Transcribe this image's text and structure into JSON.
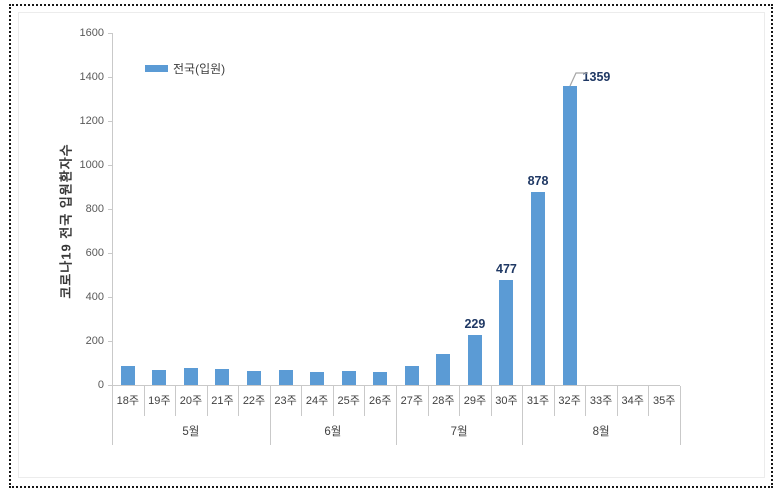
{
  "frame": {
    "border_style": "black dotted outer border around pasted chart image"
  },
  "legend": {
    "label": "전국(입원)"
  },
  "chart_data": {
    "type": "bar",
    "title": "",
    "xlabel": "",
    "ylabel": "코로나19 전국 입원환자수",
    "legend": [
      "전국(입원)"
    ],
    "legend_position": "top-left inside plot",
    "grid": false,
    "ylim": [
      0,
      1600
    ],
    "yticks": [
      0,
      200,
      400,
      600,
      800,
      1000,
      1200,
      1400,
      1600
    ],
    "categories": [
      "18주",
      "19주",
      "20주",
      "21주",
      "22주",
      "23주",
      "24주",
      "25주",
      "26주",
      "27주",
      "28주",
      "29주",
      "30주",
      "31주",
      "32주",
      "33주",
      "34주",
      "35주"
    ],
    "month_groups": [
      {
        "label": "5월",
        "weeks": 5
      },
      {
        "label": "6월",
        "weeks": 4
      },
      {
        "label": "7월",
        "weeks": 4
      },
      {
        "label": "8월",
        "weeks": 5
      }
    ],
    "series": [
      {
        "name": "전국(입원)",
        "values": [
          85,
          70,
          79,
          75,
          62,
          67,
          58,
          64,
          58,
          86,
          142,
          229,
          477,
          878,
          1359,
          0,
          0,
          0
        ]
      }
    ],
    "data_labels": [
      {
        "category": "29주",
        "text": "229"
      },
      {
        "category": "30주",
        "text": "477"
      },
      {
        "category": "31주",
        "text": "878"
      },
      {
        "category": "32주",
        "text": "1359",
        "callout": true
      }
    ],
    "colors": {
      "bar": "#5b9bd5",
      "data_label": "#1f3864",
      "axis": "#c9c9c9",
      "tick_text": "#595959",
      "category_text": "#404040",
      "leader_line": "#a6a6a6"
    }
  }
}
